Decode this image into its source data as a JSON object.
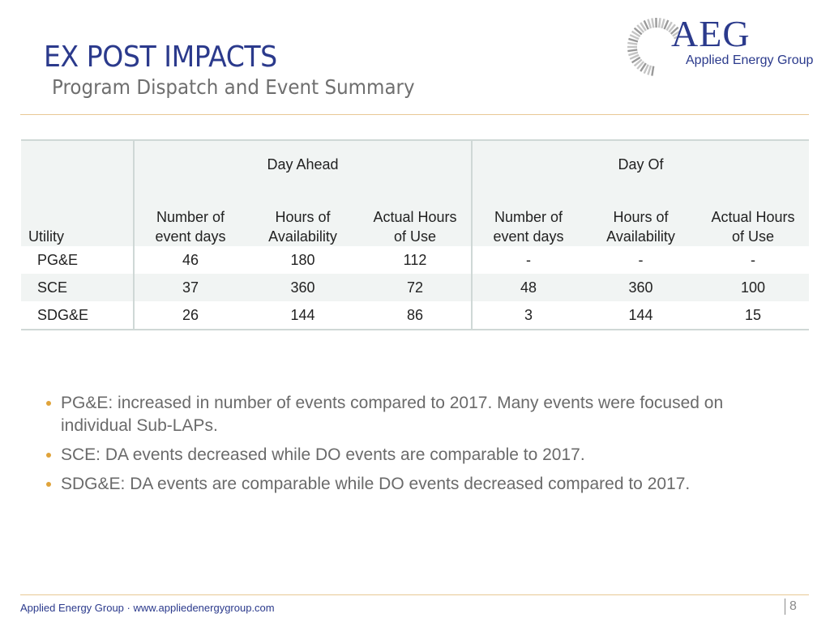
{
  "header": {
    "title": "EX POST IMPACTS",
    "subtitle": "Program Dispatch and Event Summary"
  },
  "logo": {
    "mark": "AEG",
    "name": "Applied Energy Group",
    "icon": "sunburst-icon",
    "color": "#2b3a8c"
  },
  "table": {
    "groups": [
      "Day Ahead",
      "Day Of"
    ],
    "columns": {
      "utility": "Utility",
      "day_ahead": [
        "Number of\nevent days",
        "Hours of\nAvailability",
        "Actual Hours\nof Use"
      ],
      "day_of": [
        "Number of\nevent days",
        "Hours of\nAvailability",
        "Actual Hours\nof Use"
      ]
    },
    "rows": [
      {
        "utility": "PG&E",
        "values": [
          "46",
          "180",
          "112",
          "-",
          "-",
          "-"
        ]
      },
      {
        "utility": "SCE",
        "values": [
          "37",
          "360",
          "72",
          "48",
          "360",
          "100"
        ]
      },
      {
        "utility": "SDG&E",
        "values": [
          "26",
          "144",
          "86",
          "3",
          "144",
          "15"
        ]
      }
    ]
  },
  "bullets": [
    "PG&E: increased in number of events compared to 2017. Many events were focused on individual Sub-LAPs.",
    "SCE: DA events decreased while DO events are comparable to 2017.",
    "SDG&E: DA events are comparable while DO events decreased compared to 2017."
  ],
  "footer": {
    "company": "Applied Energy Group · www.appliedenergygroup.com",
    "page": "8"
  },
  "colors": {
    "accent": "#e0a33a",
    "brand": "#2b3a8c",
    "rule": "#e8c894",
    "table_fill": "#f1f4f3"
  }
}
